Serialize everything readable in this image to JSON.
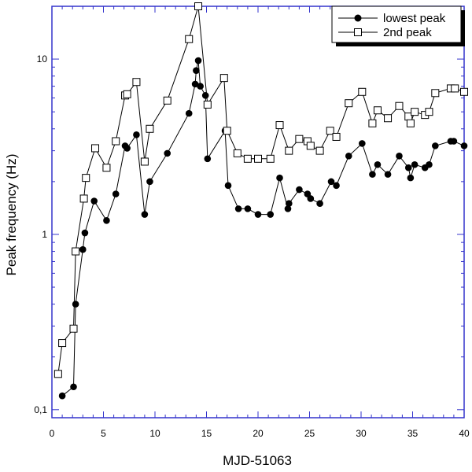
{
  "chart_data": {
    "type": "line",
    "title": "",
    "xlabel": "MJD-51063",
    "ylabel": "Peak frequency (Hz)",
    "xscale": "linear",
    "yscale": "log",
    "xlim": [
      0,
      40
    ],
    "ylim": [
      0.09,
      20
    ],
    "xticks": [
      0,
      5,
      10,
      15,
      20,
      25,
      30,
      35,
      40
    ],
    "xtick_labels": [
      "0",
      "5",
      "10",
      "15",
      "20",
      "25",
      "30",
      "35",
      "40"
    ],
    "yticks": [
      0.1,
      1,
      10
    ],
    "ytick_labels": [
      "0,1",
      "1",
      "10"
    ],
    "grid": false,
    "legend_position": "top-right",
    "colors": {
      "frame": "#3333cc",
      "line": "#000000",
      "background": "#ffffff"
    },
    "series": [
      {
        "name": "lowest peak",
        "marker": "filled-circle",
        "x": [
          1.0,
          2.1,
          2.3,
          3.0,
          3.2,
          4.1,
          5.3,
          6.2,
          7.1,
          7.3,
          8.2,
          9.0,
          9.5,
          11.2,
          13.3,
          13.9,
          14.0,
          14.2,
          14.4,
          14.9,
          15.1,
          16.8,
          17.1,
          18.1,
          19.0,
          20.0,
          21.2,
          22.1,
          22.9,
          23.0,
          24.0,
          24.8,
          25.1,
          26.0,
          27.1,
          27.6,
          28.8,
          30.1,
          31.1,
          31.6,
          32.6,
          33.7,
          34.6,
          34.8,
          35.2,
          36.2,
          36.6,
          37.2,
          38.7,
          39.0,
          40.0
        ],
        "y": [
          0.12,
          0.135,
          0.4,
          0.82,
          1.02,
          1.55,
          1.2,
          1.7,
          3.2,
          3.1,
          3.7,
          1.3,
          2.0,
          2.9,
          4.9,
          7.2,
          8.6,
          9.8,
          7.0,
          6.2,
          2.7,
          3.9,
          1.9,
          1.4,
          1.4,
          1.3,
          1.3,
          2.1,
          1.4,
          1.5,
          1.8,
          1.7,
          1.6,
          1.5,
          2.0,
          1.9,
          2.8,
          3.3,
          2.2,
          2.5,
          2.2,
          2.8,
          2.4,
          2.1,
          2.5,
          2.4,
          2.5,
          3.2,
          3.4,
          3.4,
          3.2
        ]
      },
      {
        "name": "2nd peak",
        "marker": "open-square",
        "x": [
          0.6,
          1.0,
          2.1,
          2.3,
          3.1,
          3.3,
          4.2,
          5.3,
          6.2,
          7.1,
          7.3,
          8.2,
          9.0,
          9.5,
          11.2,
          13.3,
          14.2,
          15.1,
          16.7,
          17.0,
          18.0,
          19.0,
          20.0,
          21.2,
          22.1,
          23.0,
          24.0,
          24.8,
          25.1,
          26.0,
          27.0,
          27.6,
          28.8,
          30.1,
          31.1,
          31.6,
          32.6,
          33.7,
          34.6,
          34.8,
          35.2,
          36.2,
          36.6,
          37.2,
          38.7,
          39.1,
          40.0
        ],
        "y": [
          0.16,
          0.24,
          0.29,
          0.8,
          1.6,
          2.1,
          3.1,
          2.4,
          3.4,
          6.2,
          6.3,
          7.4,
          2.6,
          4.0,
          5.8,
          13.0,
          20.0,
          5.5,
          7.8,
          3.9,
          2.9,
          2.7,
          2.7,
          2.7,
          4.2,
          3.0,
          3.5,
          3.4,
          3.2,
          3.0,
          3.9,
          3.6,
          5.6,
          6.5,
          4.3,
          5.1,
          4.6,
          5.4,
          4.7,
          4.3,
          5.0,
          4.8,
          5.0,
          6.4,
          6.8,
          6.8,
          6.5
        ]
      }
    ]
  }
}
